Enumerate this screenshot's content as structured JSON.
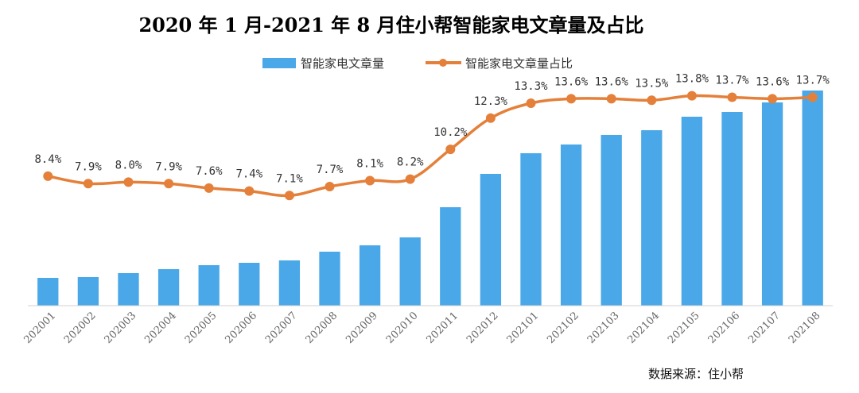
{
  "chart_data": {
    "type": "bar+line",
    "title": "2020 年 1 月-2021 年 8 月住小帮智能家电文章量及占比",
    "categories": [
      "202001",
      "202002",
      "202003",
      "202004",
      "202005",
      "202006",
      "202007",
      "202008",
      "202009",
      "202010",
      "202011",
      "202012",
      "202101",
      "202102",
      "202103",
      "202104",
      "202105",
      "202106",
      "202107",
      "202108"
    ],
    "series": [
      {
        "name": "智能家电文章量",
        "type": "bar",
        "color": "#4AA8E8",
        "values": [
          3.5,
          3.6,
          4.1,
          4.6,
          5.1,
          5.4,
          5.7,
          6.8,
          7.6,
          8.6,
          12.4,
          16.6,
          19.2,
          20.3,
          21.5,
          22.1,
          23.8,
          24.4,
          25.6,
          27.1
        ]
      },
      {
        "name": "智能家电文章量占比",
        "type": "line",
        "color": "#E4803A",
        "values": [
          8.4,
          7.9,
          8.0,
          7.9,
          7.6,
          7.4,
          7.1,
          7.7,
          8.1,
          8.2,
          10.2,
          12.3,
          13.3,
          13.6,
          13.6,
          13.5,
          13.8,
          13.7,
          13.6,
          13.7
        ],
        "labels": [
          "8.4%",
          "7.9%",
          "8.0%",
          "7.9%",
          "7.6%",
          "7.4%",
          "7.1%",
          "7.7%",
          "8.1%",
          "8.2%",
          "10.2%",
          "12.3%",
          "13.3%",
          "13.6%",
          "13.6%",
          "13.5%",
          "13.8%",
          "13.7%",
          "13.6%",
          "13.7%"
        ]
      }
    ],
    "bar_ylim": [
      0,
      33
    ],
    "line_ylim": [
      -0.3,
      17.3
    ],
    "grid": false,
    "legend": "top-center",
    "source": "数据来源：住小帮"
  }
}
